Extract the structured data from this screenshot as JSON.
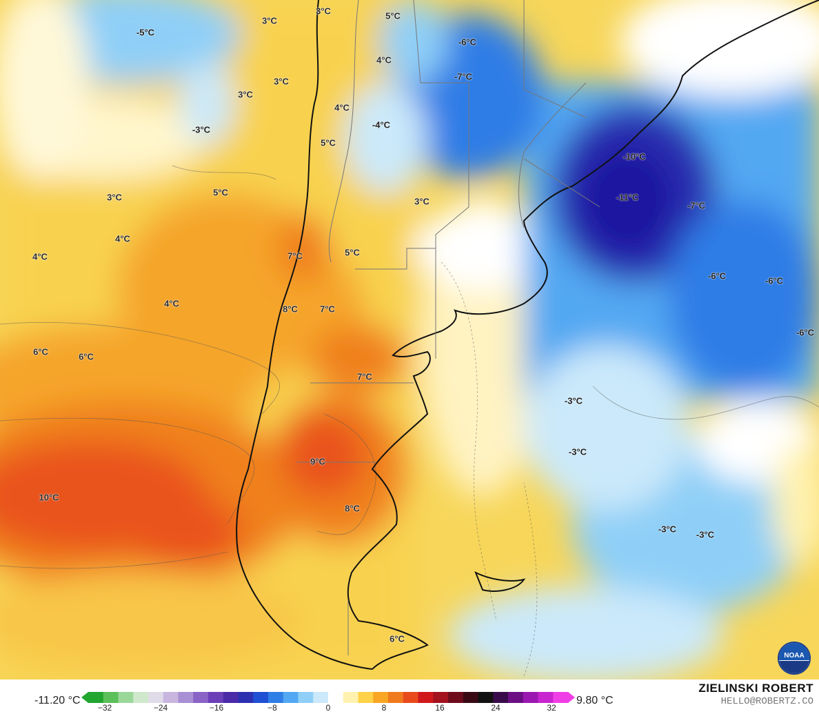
{
  "map": {
    "labels": [
      {
        "text": "-5°C",
        "tone": "cold"
      },
      {
        "text": "3°C",
        "tone": "warm"
      },
      {
        "text": "3°C",
        "tone": "warm"
      },
      {
        "text": "5°C",
        "tone": "warm"
      },
      {
        "text": "-6°C",
        "tone": "cold"
      },
      {
        "text": "4°C",
        "tone": "warm"
      },
      {
        "text": "3°C",
        "tone": "warm"
      },
      {
        "text": "3°C",
        "tone": "warm"
      },
      {
        "text": "-7°C",
        "tone": "cold"
      },
      {
        "text": "4°C",
        "tone": "warm"
      },
      {
        "text": "-3°C",
        "tone": "cold"
      },
      {
        "text": "-4°C",
        "tone": "cold"
      },
      {
        "text": "5°C",
        "tone": "warm"
      },
      {
        "text": "-10°C",
        "tone": "cold"
      },
      {
        "text": "3°C",
        "tone": "warm"
      },
      {
        "text": "5°C",
        "tone": "warm"
      },
      {
        "text": "3°C",
        "tone": "warm"
      },
      {
        "text": "-11°C",
        "tone": "cold"
      },
      {
        "text": "-7°C",
        "tone": "cold"
      },
      {
        "text": "4°C",
        "tone": "warm"
      },
      {
        "text": "4°C",
        "tone": "warm"
      },
      {
        "text": "7°C",
        "tone": "warm"
      },
      {
        "text": "5°C",
        "tone": "warm"
      },
      {
        "text": "-6°C",
        "tone": "cold"
      },
      {
        "text": "-6°C",
        "tone": "cold"
      },
      {
        "text": "4°C",
        "tone": "warm"
      },
      {
        "text": "8°C",
        "tone": "warm"
      },
      {
        "text": "7°C",
        "tone": "warm"
      },
      {
        "text": "-6°C",
        "tone": "cold"
      },
      {
        "text": "6°C",
        "tone": "warm"
      },
      {
        "text": "6°C",
        "tone": "warm"
      },
      {
        "text": "7°C",
        "tone": "warm"
      },
      {
        "text": "-3°C",
        "tone": "cold"
      },
      {
        "text": "-3°C",
        "tone": "cold"
      },
      {
        "text": "9°C",
        "tone": "warm"
      },
      {
        "text": "10°C",
        "tone": "warm"
      },
      {
        "text": "8°C",
        "tone": "warm"
      },
      {
        "text": "-3°C",
        "tone": "cold"
      },
      {
        "text": "-3°C",
        "tone": "cold"
      },
      {
        "text": "6°C",
        "tone": "warm"
      }
    ]
  },
  "legend": {
    "min_label": "-11.20 °C",
    "max_label": "9.80 °C",
    "ticks": [
      "−32",
      "−24",
      "−16",
      "−8",
      "0",
      "8",
      "16",
      "24",
      "32"
    ],
    "colors": [
      "#21a630",
      "#5cc05a",
      "#9cd79a",
      "#cfe8cb",
      "#e0dbe8",
      "#c9b6df",
      "#a98fd3",
      "#8a63c6",
      "#6a3fb8",
      "#4b2aa8",
      "#2c2fb0",
      "#1f4fd2",
      "#2f7de6",
      "#52a8f2",
      "#8fcff7",
      "#cbe9fa",
      "#ffffff",
      "#fff2b0",
      "#ffd24a",
      "#f8a623",
      "#f07a1e",
      "#e84a1c",
      "#d0181c",
      "#a3121e",
      "#6e0c1c",
      "#3a0a14",
      "#111111",
      "#3a0b4a",
      "#6b0f83",
      "#9a18b1",
      "#c924cf",
      "#f03ee6"
    ]
  },
  "credit": {
    "name": "ZIELINSKI ROBERT",
    "email": "HELLO@ROBERTZ.CO"
  },
  "logo": {
    "text": "NOAA",
    "icon": "noaa-logo"
  }
}
